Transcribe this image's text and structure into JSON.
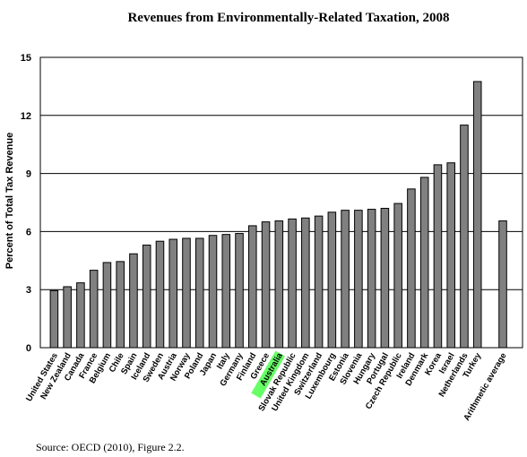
{
  "colors": {
    "bar_fill": "#808080",
    "bar_stroke": "#000000",
    "highlight": "#66ff66",
    "grid": "#000000"
  },
  "chart_data": {
    "type": "bar",
    "title": "Revenues from Environmentally-Related Taxation, 2008",
    "ylabel": "Percent of Total Tax Revenue",
    "xlabel": "",
    "ylim": [
      0,
      15
    ],
    "yticks": [
      0,
      3,
      6,
      9,
      12,
      15
    ],
    "grid": true,
    "highlighted_category": "Australia",
    "categories": [
      "United States",
      "New Zealand",
      "Canada",
      "France",
      "Belgium",
      "Chile",
      "Spain",
      "Iceland",
      "Sweden",
      "Austria",
      "Norway",
      "Poland",
      "Japan",
      "Italy",
      "Germany",
      "Finland",
      "Greece",
      "Australia",
      "Slovak Republic",
      "United Kingdom",
      "Switzerland",
      "Luxembourg",
      "Estonia",
      "Slovenia",
      "Hungary",
      "Portugal",
      "Czech Republic",
      "Ireland",
      "Denmark",
      "Korea",
      "Israel",
      "Netherlands",
      "Turkey",
      "Arithmetic average"
    ],
    "values": [
      2.95,
      3.15,
      3.35,
      4.0,
      4.4,
      4.45,
      4.85,
      5.3,
      5.5,
      5.6,
      5.65,
      5.65,
      5.8,
      5.85,
      5.9,
      6.3,
      6.5,
      6.55,
      6.65,
      6.7,
      6.8,
      7.0,
      7.1,
      7.1,
      7.15,
      7.2,
      7.45,
      8.2,
      8.8,
      9.45,
      9.55,
      11.5,
      13.75,
      6.55
    ]
  },
  "source": "Source: OECD (2010), Figure 2.2."
}
